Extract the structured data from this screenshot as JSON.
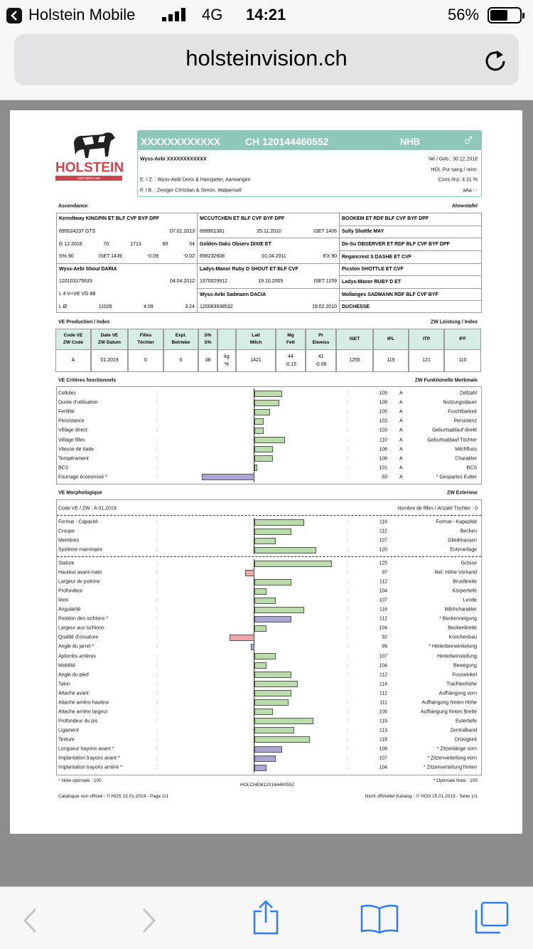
{
  "status": {
    "carrier": "Holstein Mobile",
    "network": "4G",
    "time": "14:21",
    "battery": "56%"
  },
  "browser": {
    "url": "holsteinvision.ch"
  },
  "doc": {
    "separator": ":",
    "logo": {
      "name": "HOLSTEIN",
      "country": "SWITZERLAND"
    },
    "header": {
      "id_name": "XXXXXXXXXXXX",
      "id_number": "CH 120144460552",
      "breed": "NHB",
      "sex": "♂",
      "owner": "Wyss-Aebi XXXXXXXXXXXX",
      "born": "Né / Geb.: 30.12.2018",
      "blood": "HOL   Pur sang / reinr.",
      "inbreeding": "Cons./Inz. 4.31 %",
      "breeder": "E. / Z. : Wyss-Aebi Doris & Hanspeter, Aarwangen",
      "owner_pb": "P. / B. : Zesiger Christian & Simon, Walperswil",
      "aaa": "aAa : -"
    },
    "pedigree": {
      "title_fr": "Ascendance",
      "title_de": "Ahnentafel",
      "columns": [
        [
          {
            "name": "Kerndtway KINGPIN  ET BLF CVF BYF DPF",
            "details": [
              [
                "695024237 GTS",
                "07.01.2013"
              ],
              [
                "G  12.2018",
                "70",
                "1713",
                "60",
                "54"
              ],
              [
                "S% 90",
                "ISET 1439",
                "-0.09",
                "-0.02"
              ]
            ]
          },
          {
            "name": "Wyss-Aebi Shout DARIA",
            "details": [
              [
                "120103175633",
                "04.04.2012"
              ],
              [
                "L 4   V+VE    VG 88"
              ],
              [
                "L Ø",
                "11026",
                "4.09",
                "3.24"
              ]
            ]
          }
        ],
        [
          {
            "name": "MCCUTCHEN  ET BLF CVF BYF DPF",
            "details": [
              [
                "699901381",
                "25.11.2010",
                "ISET 1406"
              ]
            ]
          },
          {
            "name": "Golden-Oaks Observ DIXIE  ET",
            "details": [
              [
                "698232608",
                "01.04.2011",
                "EX 90"
              ]
            ]
          },
          {
            "name": "Ladys-Manor Ruby D SHOUT  ET BLF CVF",
            "details": [
              [
                "1370029912",
                "19.10.2005",
                "ISET 1159"
              ]
            ]
          },
          {
            "name": "Wyss-Aebi Sadmann DACIA",
            "details": [
              [
                "120083938532",
                "19.02.2010"
              ]
            ]
          }
        ],
        [
          {
            "name": "BOOKEM  ET RDF BLF CVF BYF DPF",
            "details": []
          },
          {
            "name": "Sully Shottle MAY",
            "details": []
          },
          {
            "name": "De-Su OBSERVER  ET RDF BLF CVF BYF DPF",
            "details": []
          },
          {
            "name": "Regancrest S DASHE  ET CVF",
            "details": []
          },
          {
            "name": "Picston SHOTTLE  ET CVF",
            "details": []
          },
          {
            "name": "Ladys-Manor RUBY D  ET",
            "details": []
          },
          {
            "name": "Mollanges SADMANN  RDF BLF CVF BYF",
            "details": []
          },
          {
            "name": "DUCHESSE",
            "details": []
          }
        ]
      ]
    },
    "production": {
      "title_fr": "VE Production / Index",
      "title_de": "ZW Leistung / Index",
      "header": [
        [
          "Code VE",
          "ZW Code"
        ],
        [
          "Date VE",
          "ZW Datum"
        ],
        [
          "Filles",
          "Töchter"
        ],
        [
          "Expl.",
          "Betriebe"
        ],
        [
          "S%",
          "S%"
        ],
        null,
        [
          "Lait",
          "Milch"
        ],
        [
          "Mg",
          "Fett"
        ],
        [
          "Pr",
          "Eiweiss"
        ],
        [
          "ISET"
        ],
        [
          "IPL"
        ],
        [
          "ITP"
        ],
        [
          "IFF"
        ]
      ],
      "row": [
        [
          "A"
        ],
        [
          "01.2019"
        ],
        [
          "0"
        ],
        [
          "0"
        ],
        [
          "38"
        ],
        [
          "kg",
          "%"
        ],
        [
          "1421"
        ],
        [
          "44",
          "-0.15"
        ],
        [
          "41",
          "-0.06"
        ],
        [
          "1255"
        ],
        [
          "119"
        ],
        [
          "121"
        ],
        [
          "110"
        ]
      ]
    },
    "bars": {
      "xlim": [
        70,
        130
      ],
      "reference": 100,
      "color": "#b9dcaa"
    },
    "functional": {
      "title_fr": "VE Critères fonctionnels",
      "title_de": "ZW Funktionelle Merkmale",
      "traits": [
        {
          "fr": "Cellules",
          "de": "Zellzahl",
          "value": 109,
          "code": "A"
        },
        {
          "fr": "Durée d'utilisation",
          "de": "Nutzungsdauer",
          "value": 108,
          "code": "A"
        },
        {
          "fr": "Fertilité",
          "de": "Fruchtbarkeit",
          "value": 105,
          "code": "A"
        },
        {
          "fr": "Persistance",
          "de": "Persistenz",
          "value": 103,
          "code": "A"
        },
        {
          "fr": "Vêlage direct",
          "de": "Geburtsablauf direkt",
          "value": 103,
          "code": "A"
        },
        {
          "fr": "Vêlage filles",
          "de": "Geburtsablauf Töchter",
          "value": 110,
          "code": "A"
        },
        {
          "fr": "Vitesse de traite",
          "de": "Milchfluss",
          "value": 106,
          "code": "A"
        },
        {
          "fr": "Tempérament",
          "de": "Charakter",
          "value": 106,
          "code": "A"
        },
        {
          "fr": "BCS",
          "de": "BCS",
          "value": 101,
          "code": "A"
        },
        {
          "fr": "Fourrage économisé *",
          "de": "* Gespartes Futter",
          "value": 83,
          "code": "A",
          "color": "#aaa6d4"
        }
      ]
    },
    "morphology": {
      "title_fr": "VE Morphologique",
      "title_de": "ZW Exterieur",
      "code": "Code VE / ZW : A 01.2019",
      "daughters": "Nombre de filles / Anzahl Töchter : 0",
      "composites": [
        {
          "fr": "Format - Capacité",
          "de": "Format - Kapazität",
          "value": 116
        },
        {
          "fr": "Croupe",
          "de": "Becken",
          "value": 112
        },
        {
          "fr": "Membres",
          "de": "Gliedmassen",
          "value": 107
        },
        {
          "fr": "Système mammaire",
          "de": "Euteranlage",
          "value": 120
        }
      ],
      "linear": [
        {
          "fr": "Stature",
          "de": "Grösse",
          "value": 125
        },
        {
          "fr": "Hauteur avant-main",
          "de": "Rel. Höhe Vorhand",
          "value": 97,
          "color": "#eaa9a9"
        },
        {
          "fr": "Largeur de poitrine",
          "de": "Brustbreite",
          "value": 112
        },
        {
          "fr": "Profondeur",
          "de": "Körpertiefe",
          "value": 104
        },
        {
          "fr": "Rein",
          "de": "Lende",
          "value": 107
        },
        {
          "fr": "Angularité",
          "de": "Milchcharakter",
          "value": 116
        },
        {
          "fr": "Position des ischions *",
          "de": "* Beckenneigung",
          "value": 112,
          "color": "#aaa6d4"
        },
        {
          "fr": "Largeur aux ischions",
          "de": "Beckenbreite",
          "value": 104
        },
        {
          "fr": "Qualité d'ossature",
          "de": "Knochenbau",
          "value": 92,
          "color": "#eaa9a9"
        },
        {
          "fr": "Angle du jarret *",
          "de": "* Hinterbeinwinkelung",
          "value": 99,
          "color": "#aaa6d4"
        },
        {
          "fr": "Aplombs arrières",
          "de": "Hinterbeinstellung",
          "value": 107
        },
        {
          "fr": "Mobilité",
          "de": "Bewegung",
          "value": 104
        },
        {
          "fr": "Angle du pied",
          "de": "Fusswinkel",
          "value": 112
        },
        {
          "fr": "Talon",
          "de": "Trachtenhöhe",
          "value": 114
        },
        {
          "fr": "Attache avant",
          "de": "Aufhängung vorn",
          "value": 112
        },
        {
          "fr": "Attache arrière hauteur",
          "de": "Aufhängung hinten Höhe",
          "value": 111
        },
        {
          "fr": "Attache arrière largeur",
          "de": "Aufhängung hinten Breite",
          "value": 106
        },
        {
          "fr": "Profondeur du pis",
          "de": "Eutertiefe",
          "value": 119
        },
        {
          "fr": "Ligament",
          "de": "Zentralband",
          "value": 113
        },
        {
          "fr": "Texture",
          "de": "Drüsigkeit",
          "value": 118
        },
        {
          "fr": "Longueur trayons avant *",
          "de": "* Zitzenlänge vorn",
          "value": 109,
          "color": "#aaa6d4"
        },
        {
          "fr": "Implantation trayons avant *",
          "de": "* Zitzenverteilung vorn",
          "value": 107,
          "color": "#aaa6d4"
        },
        {
          "fr": "Implantation trayons arrière *",
          "de": "* Zitzenverteilung hinten",
          "value": 104,
          "color": "#aaa6d4"
        }
      ]
    },
    "footer": {
      "note_fr": "* Note optimale : 100",
      "note_de": "* Optimale Note : 100",
      "code": "HOLCHEM120144460552",
      "catalog_fr": "Catalogue non officiel  -  © HOS 15.01.2019  -  Page 1/1",
      "catalog_de": "Nicht offizieller Katalog  -  © HOS 15.01.2019  -  Seite 1/1"
    }
  }
}
